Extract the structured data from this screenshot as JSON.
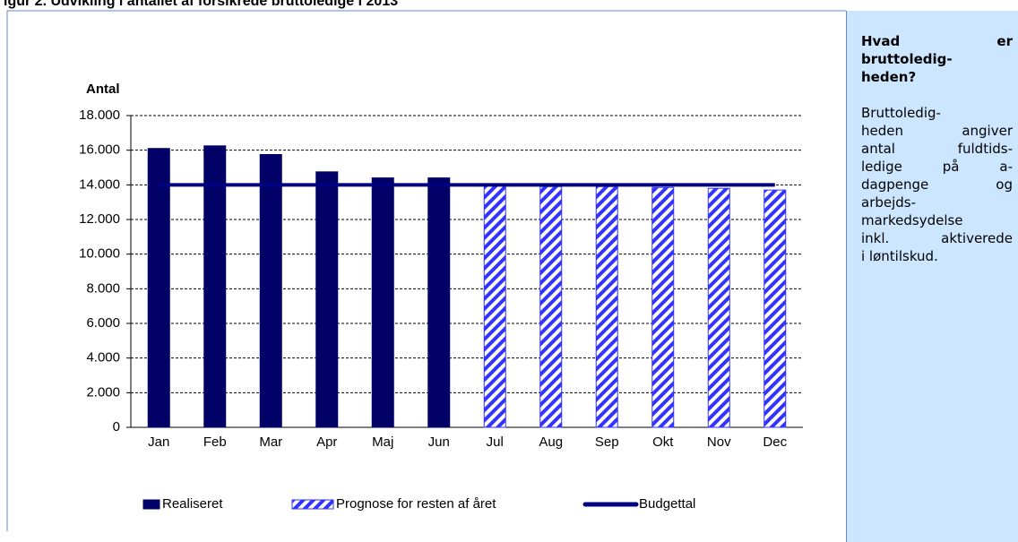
{
  "chart_data": {
    "type": "bar",
    "title": "igur 2. Udvikling i antallet af forsikrede bruttoledige i 2013",
    "y_label": "Antal",
    "categories": [
      "Jan",
      "Feb",
      "Mar",
      "Apr",
      "Maj",
      "Jun",
      "Jul",
      "Aug",
      "Sep",
      "Okt",
      "Nov",
      "Dec"
    ],
    "series": [
      {
        "name": "Realiseret",
        "type": "bar",
        "color": "#000066",
        "values": [
          16100,
          16250,
          15750,
          14750,
          14400,
          14400,
          null,
          null,
          null,
          null,
          null,
          null
        ]
      },
      {
        "name": "Prognose for resten af året",
        "type": "bar",
        "color": "#3333ff",
        "pattern": "hatch",
        "values": [
          null,
          null,
          null,
          null,
          null,
          null,
          13950,
          13900,
          13900,
          13850,
          13800,
          13700
        ]
      },
      {
        "name": "Budgettal",
        "type": "line",
        "color": "#000080",
        "values": [
          14000,
          14000,
          14000,
          14000,
          14000,
          14000,
          14000,
          14000,
          14000,
          14000,
          14000,
          14000
        ]
      }
    ],
    "ylim": [
      0,
      18000
    ],
    "yticks": [
      0,
      {
        "value": 2000,
        "label": "2.000"
      },
      {
        "value": 4000,
        "label": "4.000"
      },
      {
        "value": 6000,
        "label": "6.000"
      },
      {
        "value": 8000,
        "label": "8.000"
      },
      {
        "value": 10000,
        "label": "10.000"
      },
      {
        "value": 12000,
        "label": "12.000"
      },
      {
        "value": 14000,
        "label": "14.000"
      },
      {
        "value": 16000,
        "label": "16.000"
      },
      {
        "value": 18000,
        "label": "18.000"
      }
    ],
    "grid": true,
    "legend": "bottom"
  },
  "sidebar": {
    "heading": [
      "Hvad er",
      "bruttoledig-",
      "heden?"
    ],
    "body": [
      "Bruttoledig-",
      "heden angiver",
      "antal fuldtids-",
      "ledige på a-",
      "dagpenge og",
      "arbejds-",
      "markedsydelse",
      "inkl. aktiverede",
      "i løntilskud."
    ]
  }
}
